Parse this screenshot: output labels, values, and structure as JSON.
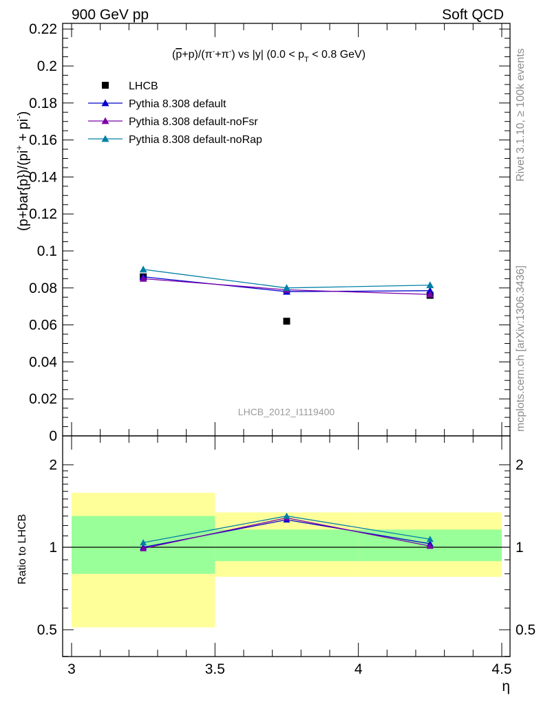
{
  "header": {
    "left": "900 GeV pp",
    "right": "Soft QCD"
  },
  "side_labels": {
    "rivet": "Rivet 3.1.10, ≥ 100k events",
    "mcplots": "mcplots.cern.ch [arXiv:1306.3436]"
  },
  "watermark": "LHCB_2012_I1119400",
  "chart_data": [
    {
      "type": "scatter",
      "title": "(p̅+p)/(π⁻+π⁻) vs |y| (0.0 < p_T < 0.8 GeV)",
      "title_parts": {
        "a": "(",
        "pbar": "p",
        "b": "+p)/(π",
        "sup1": "-",
        "c": "+π",
        "sup2": "-",
        "d": ") vs |y| (0.0 < p",
        "sub": "T",
        "e": " < 0.8 GeV)"
      },
      "ylabel": "(p+bar{p})/(pi⁺ + pi⁻)",
      "ylabel_parts": {
        "main": "(p+bar{p})/(pi",
        "sup1": "+",
        "mid": " + pi",
        "sup2": "-",
        "end": ")"
      },
      "xlim": [
        3.0,
        4.5
      ],
      "ylim": [
        0,
        0.225
      ],
      "y_ticks": [
        0,
        0.02,
        0.04,
        0.06,
        0.08,
        0.1,
        0.12,
        0.14,
        0.16,
        0.18,
        0.2,
        0.22
      ],
      "y_tick_labels": [
        "0",
        "0.02",
        "0.04",
        "0.06",
        "0.08",
        "0.1",
        "0.12",
        "0.14",
        "0.16",
        "0.18",
        "0.2",
        "0.22"
      ],
      "legend_position": "top-left",
      "series": [
        {
          "name": "LHCB",
          "marker": "square",
          "color": "#000000",
          "x": [
            3.25,
            3.75,
            4.25
          ],
          "y": [
            0.086,
            0.062,
            0.076
          ]
        },
        {
          "name": "Pythia 8.308 default",
          "marker": "triangle",
          "color": "#0000cc",
          "x": [
            3.25,
            3.75,
            4.25
          ],
          "y": [
            0.086,
            0.078,
            0.0785
          ]
        },
        {
          "name": "Pythia 8.308 default-noFsr",
          "marker": "triangle",
          "color": "#7a00a8",
          "x": [
            3.25,
            3.75,
            4.25
          ],
          "y": [
            0.085,
            0.079,
            0.0765
          ]
        },
        {
          "name": "Pythia 8.308 default-noRap",
          "marker": "triangle",
          "color": "#007fa6",
          "x": [
            3.25,
            3.75,
            4.25
          ],
          "y": [
            0.09,
            0.08,
            0.0815
          ]
        }
      ]
    },
    {
      "type": "line",
      "ylabel": "Ratio to LHCB",
      "xlabel": "η",
      "xlim": [
        3.0,
        4.5
      ],
      "ylim": [
        0.37,
        2.3
      ],
      "log_scale_y": true,
      "x_ticks": [
        3,
        3.5,
        4,
        4.5
      ],
      "x_tick_labels": [
        "3",
        "3.5",
        "4",
        "4.5"
      ],
      "y_ticks": [
        0.5,
        1,
        2
      ],
      "y_tick_labels": [
        "0.5",
        "1",
        "2"
      ],
      "bands": {
        "x_edges": [
          3.0,
          3.5,
          4.0,
          4.5
        ],
        "yellow": [
          [
            0.51,
            1.58
          ],
          [
            0.78,
            1.34
          ],
          [
            0.78,
            1.34
          ]
        ],
        "green": [
          [
            0.8,
            1.3
          ],
          [
            0.89,
            1.16
          ],
          [
            0.89,
            1.16
          ]
        ],
        "yellow_color": "#ffff99",
        "green_color": "#99ff99"
      },
      "series": [
        {
          "name": "Pythia 8.308 default",
          "color": "#0000cc",
          "x": [
            3.25,
            3.75,
            4.25
          ],
          "y": [
            1.0,
            1.26,
            1.03
          ]
        },
        {
          "name": "Pythia 8.308 default-noFsr",
          "color": "#7a00a8",
          "x": [
            3.25,
            3.75,
            4.25
          ],
          "y": [
            0.99,
            1.28,
            1.01
          ]
        },
        {
          "name": "Pythia 8.308 default-noRap",
          "color": "#007fa6",
          "x": [
            3.25,
            3.75,
            4.25
          ],
          "y": [
            1.04,
            1.3,
            1.07
          ]
        }
      ]
    }
  ]
}
